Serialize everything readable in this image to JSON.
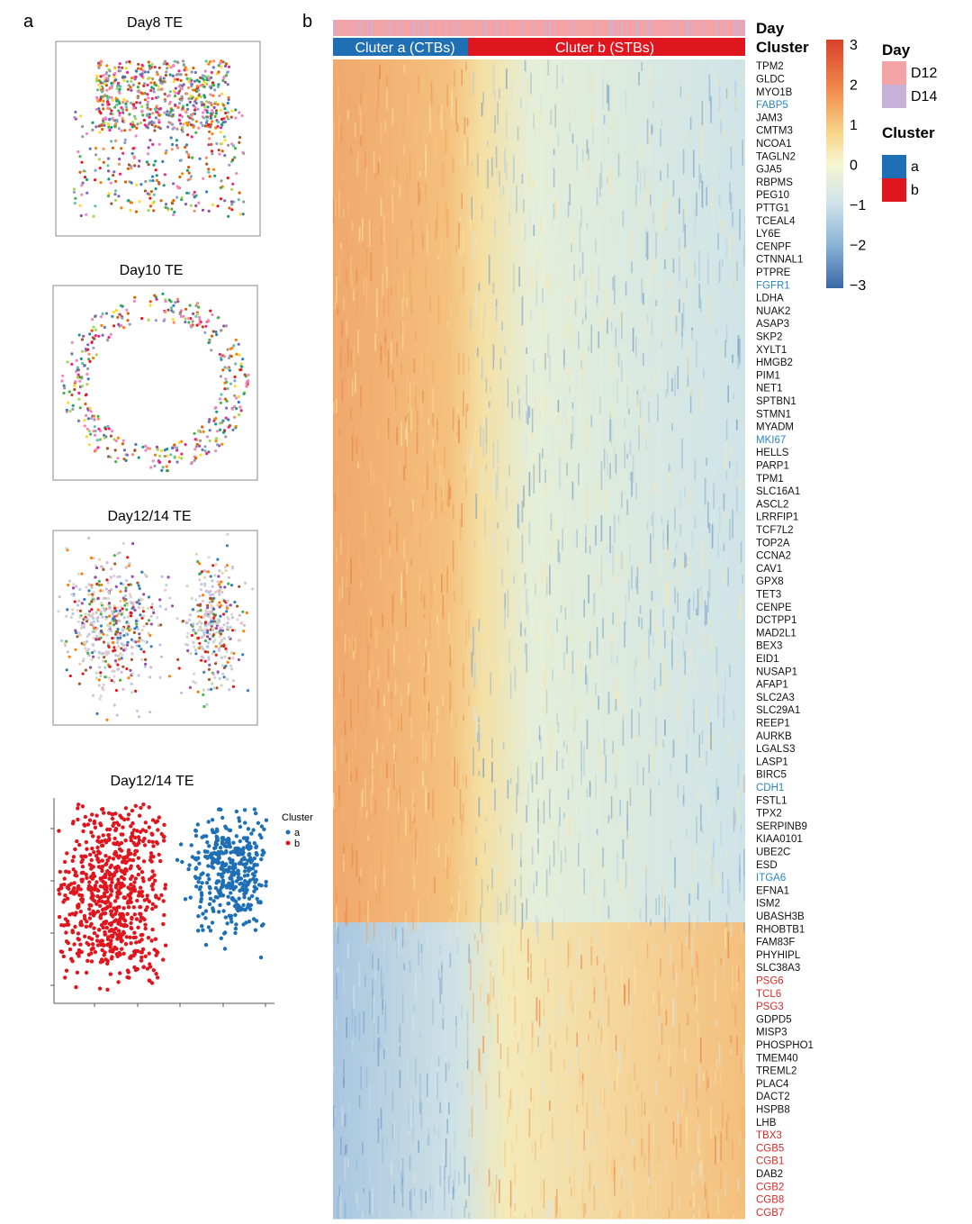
{
  "panels": {
    "a": "a",
    "b": "b"
  },
  "colors": {
    "cluster_a": "#1f6fb5",
    "cluster_b": "#e0161f",
    "day_d12": "#f3a3a3",
    "day_d14": "#c8b3d8",
    "heat_low": "#3b6fae",
    "heat_mid": "#f4f6cf",
    "heat_high": "#d93a28",
    "gene_black": "#111111",
    "gene_blue": "#2a86bf",
    "gene_red": "#d62a2a"
  },
  "scatter_panels": [
    {
      "title": "Day8 TE",
      "pattern": "dense-mixed"
    },
    {
      "title": "Day10 TE",
      "pattern": "sparse-ring"
    },
    {
      "title": "Day12/14 TE",
      "pattern": "two-lobes-faded"
    }
  ],
  "cluster_scatter": {
    "title": "Day12/14 TE",
    "legend_title": "Cluster",
    "legend_items": [
      "a",
      "b"
    ]
  },
  "heatmap": {
    "annotation_labels": {
      "day": "Day",
      "cluster": "Cluster"
    },
    "cluster_bar": {
      "a_label": "Cluter a (CTBs)",
      "b_label": "Cluter b (STBs)"
    },
    "legend": {
      "scale": [
        "3",
        "2",
        "1",
        "0",
        "−1",
        "−2",
        "−3"
      ],
      "day_title": "Day",
      "day_items": [
        "D12",
        "D14"
      ],
      "cluster_title": "Cluster",
      "cluster_items": [
        "a",
        "b"
      ]
    }
  },
  "chart_data": [
    {
      "type": "scatter",
      "title": "Day12/14 TE",
      "legend": {
        "title": "Cluster",
        "entries": [
          "a",
          "b"
        ],
        "placement": "right"
      },
      "series": [
        {
          "name": "a",
          "region": "right lobe",
          "approx_points": 420
        },
        {
          "name": "b",
          "region": "left lobe",
          "approx_points": 780
        }
      ],
      "axes": "unlabeled"
    },
    {
      "type": "heatmap",
      "title": "",
      "value_range": [
        -3,
        3
      ],
      "column_annotations": {
        "Day": [
          "D12",
          "D14"
        ],
        "Cluster": [
          "a",
          "b"
        ]
      },
      "cluster_split": {
        "a": "Cluter a (CTBs)",
        "b": "Cluter b (STBs)"
      },
      "genes_up_in_a": 67,
      "genes_up_in_b": 23,
      "genes": [
        {
          "name": "TPM2",
          "color": "black"
        },
        {
          "name": "GLDC",
          "color": "black"
        },
        {
          "name": "MYO1B",
          "color": "black"
        },
        {
          "name": "FABP5",
          "color": "blue"
        },
        {
          "name": "JAM3",
          "color": "black"
        },
        {
          "name": "CMTM3",
          "color": "black"
        },
        {
          "name": "NCOA1",
          "color": "black"
        },
        {
          "name": "TAGLN2",
          "color": "black"
        },
        {
          "name": "GJA5",
          "color": "black"
        },
        {
          "name": "RBPMS",
          "color": "black"
        },
        {
          "name": "PEG10",
          "color": "black"
        },
        {
          "name": "PTTG1",
          "color": "black"
        },
        {
          "name": "TCEAL4",
          "color": "black"
        },
        {
          "name": "LY6E",
          "color": "black"
        },
        {
          "name": "CENPF",
          "color": "black"
        },
        {
          "name": "CTNNAL1",
          "color": "black"
        },
        {
          "name": "PTPRE",
          "color": "black"
        },
        {
          "name": "FGFR1",
          "color": "blue"
        },
        {
          "name": "LDHA",
          "color": "black"
        },
        {
          "name": "NUAK2",
          "color": "black"
        },
        {
          "name": "ASAP3",
          "color": "black"
        },
        {
          "name": "SKP2",
          "color": "black"
        },
        {
          "name": "XYLT1",
          "color": "black"
        },
        {
          "name": "HMGB2",
          "color": "black"
        },
        {
          "name": "PIM1",
          "color": "black"
        },
        {
          "name": "NET1",
          "color": "black"
        },
        {
          "name": "SPTBN1",
          "color": "black"
        },
        {
          "name": "STMN1",
          "color": "black"
        },
        {
          "name": "MYADM",
          "color": "black"
        },
        {
          "name": "MKI67",
          "color": "blue"
        },
        {
          "name": "HELLS",
          "color": "black"
        },
        {
          "name": "PARP1",
          "color": "black"
        },
        {
          "name": "TPM1",
          "color": "black"
        },
        {
          "name": "SLC16A1",
          "color": "black"
        },
        {
          "name": "ASCL2",
          "color": "black"
        },
        {
          "name": "LRRFIP1",
          "color": "black"
        },
        {
          "name": "TCF7L2",
          "color": "black"
        },
        {
          "name": "TOP2A",
          "color": "black"
        },
        {
          "name": "CCNA2",
          "color": "black"
        },
        {
          "name": "CAV1",
          "color": "black"
        },
        {
          "name": "GPX8",
          "color": "black"
        },
        {
          "name": "TET3",
          "color": "black"
        },
        {
          "name": "CENPE",
          "color": "black"
        },
        {
          "name": "DCTPP1",
          "color": "black"
        },
        {
          "name": "MAD2L1",
          "color": "black"
        },
        {
          "name": "BEX3",
          "color": "black"
        },
        {
          "name": "EID1",
          "color": "black"
        },
        {
          "name": "NUSAP1",
          "color": "black"
        },
        {
          "name": "AFAP1",
          "color": "black"
        },
        {
          "name": "SLC2A3",
          "color": "black"
        },
        {
          "name": "SLC29A1",
          "color": "black"
        },
        {
          "name": "REEP1",
          "color": "black"
        },
        {
          "name": "AURKB",
          "color": "black"
        },
        {
          "name": "LGALS3",
          "color": "black"
        },
        {
          "name": "LASP1",
          "color": "black"
        },
        {
          "name": "BIRC5",
          "color": "black"
        },
        {
          "name": "CDH1",
          "color": "blue"
        },
        {
          "name": "FSTL1",
          "color": "black"
        },
        {
          "name": "TPX2",
          "color": "black"
        },
        {
          "name": "SERPINB9",
          "color": "black"
        },
        {
          "name": "KIAA0101",
          "color": "black"
        },
        {
          "name": "UBE2C",
          "color": "black"
        },
        {
          "name": "ESD",
          "color": "black"
        },
        {
          "name": "ITGA6",
          "color": "blue"
        },
        {
          "name": "EFNA1",
          "color": "black"
        },
        {
          "name": "ISM2",
          "color": "black"
        },
        {
          "name": "UBASH3B",
          "color": "black"
        },
        {
          "name": "RHOBTB1",
          "color": "black"
        },
        {
          "name": "FAM83F",
          "color": "black"
        },
        {
          "name": "PHYHIPL",
          "color": "black"
        },
        {
          "name": "SLC38A3",
          "color": "black"
        },
        {
          "name": "PSG6",
          "color": "red"
        },
        {
          "name": "TCL6",
          "color": "red"
        },
        {
          "name": "PSG3",
          "color": "red"
        },
        {
          "name": "GDPD5",
          "color": "black"
        },
        {
          "name": "MISP3",
          "color": "black"
        },
        {
          "name": "PHOSPHO1",
          "color": "black"
        },
        {
          "name": "TMEM40",
          "color": "black"
        },
        {
          "name": "TREML2",
          "color": "black"
        },
        {
          "name": "PLAC4",
          "color": "black"
        },
        {
          "name": "DACT2",
          "color": "black"
        },
        {
          "name": "HSPB8",
          "color": "black"
        },
        {
          "name": "LHB",
          "color": "black"
        },
        {
          "name": "TBX3",
          "color": "red"
        },
        {
          "name": "CGB5",
          "color": "red"
        },
        {
          "name": "CGB1",
          "color": "red"
        },
        {
          "name": "DAB2",
          "color": "black"
        },
        {
          "name": "CGB2",
          "color": "red"
        },
        {
          "name": "CGB8",
          "color": "red"
        },
        {
          "name": "CGB7",
          "color": "red"
        }
      ]
    }
  ]
}
